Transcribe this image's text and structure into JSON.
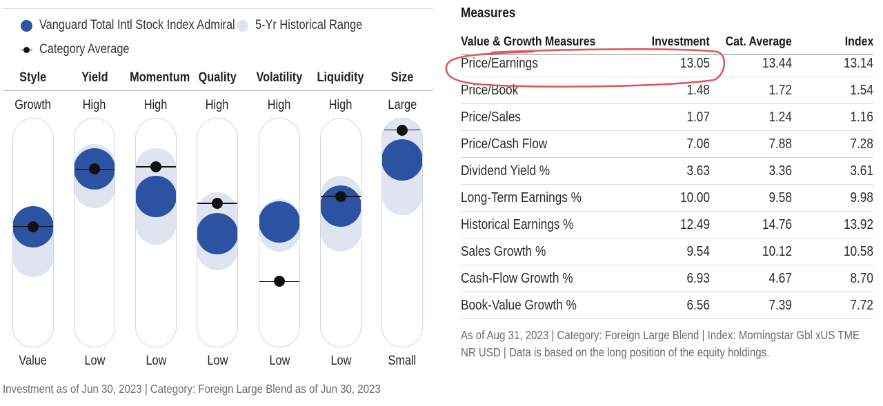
{
  "legend": {
    "fund_label": "Vanguard Total Intl Stock Index Admiral",
    "range_label": "5-Yr Historical Range",
    "avg_label": "Category Average"
  },
  "colors": {
    "fund": "#2c53a1",
    "range": "#dfe4f0",
    "average": "#111111",
    "annotation": "#e0575b"
  },
  "factors": [
    {
      "name": "Style",
      "high": "Growth",
      "low": "Value",
      "fund_level": 0.53,
      "avg_level": 0.53,
      "range_top": 0.61,
      "range_bottom": 0.31
    },
    {
      "name": "Yield",
      "high": "High",
      "low": "Low",
      "fund_level": 0.78,
      "avg_level": 0.78,
      "range_top": 0.89,
      "range_bottom": 0.61
    },
    {
      "name": "Momentum",
      "high": "High",
      "low": "Low",
      "fund_level": 0.66,
      "avg_level": 0.79,
      "range_top": 0.87,
      "range_bottom": 0.45
    },
    {
      "name": "Quality",
      "high": "High",
      "low": "Low",
      "fund_level": 0.5,
      "avg_level": 0.63,
      "range_top": 0.68,
      "range_bottom": 0.34
    },
    {
      "name": "Volatility",
      "high": "High",
      "low": "Low",
      "fund_level": 0.55,
      "avg_level": 0.29,
      "range_top": 0.65,
      "range_bottom": 0.42
    },
    {
      "name": "Liquidity",
      "high": "High",
      "low": "Low",
      "fund_level": 0.62,
      "avg_level": 0.66,
      "range_top": 0.75,
      "range_bottom": 0.42
    },
    {
      "name": "Size",
      "high": "Large",
      "low": "Small",
      "fund_level": 0.82,
      "avg_level": 0.95,
      "range_top": 1.0,
      "range_bottom": 0.58
    }
  ],
  "left_footnote": "Investment as of Jun 30, 2023 | Category: Foreign Large Blend as of Jun 30, 2023",
  "measures": {
    "title": "Measures",
    "headers": {
      "label": "Value & Growth Measures",
      "investment": "Investment",
      "cat_average": "Cat. Average",
      "index": "Index"
    },
    "rows": [
      {
        "label": "Price/Earnings",
        "investment": "13.05",
        "cat_average": "13.44",
        "index": "13.14"
      },
      {
        "label": "Price/Book",
        "investment": "1.48",
        "cat_average": "1.72",
        "index": "1.54"
      },
      {
        "label": "Price/Sales",
        "investment": "1.07",
        "cat_average": "1.24",
        "index": "1.16"
      },
      {
        "label": "Price/Cash Flow",
        "investment": "7.06",
        "cat_average": "7.88",
        "index": "7.28"
      },
      {
        "label": "Dividend Yield %",
        "investment": "3.63",
        "cat_average": "3.36",
        "index": "3.61"
      },
      {
        "label": "Long-Term Earnings %",
        "investment": "10.00",
        "cat_average": "9.58",
        "index": "9.98"
      },
      {
        "label": "Historical Earnings %",
        "investment": "12.49",
        "cat_average": "14.76",
        "index": "13.92"
      },
      {
        "label": "Sales Growth %",
        "investment": "9.54",
        "cat_average": "10.12",
        "index": "10.58"
      },
      {
        "label": "Cash-Flow Growth %",
        "investment": "6.93",
        "cat_average": "4.67",
        "index": "8.70"
      },
      {
        "label": "Book-Value Growth %",
        "investment": "6.56",
        "cat_average": "7.39",
        "index": "7.72"
      }
    ],
    "footnote_line1": "As of Aug 31, 2023 | Category: Foreign Large Blend | Index: Morningstar Gbl xUS TME",
    "footnote_line2": "NR USD | Data is based on the long position of the equity holdings."
  }
}
